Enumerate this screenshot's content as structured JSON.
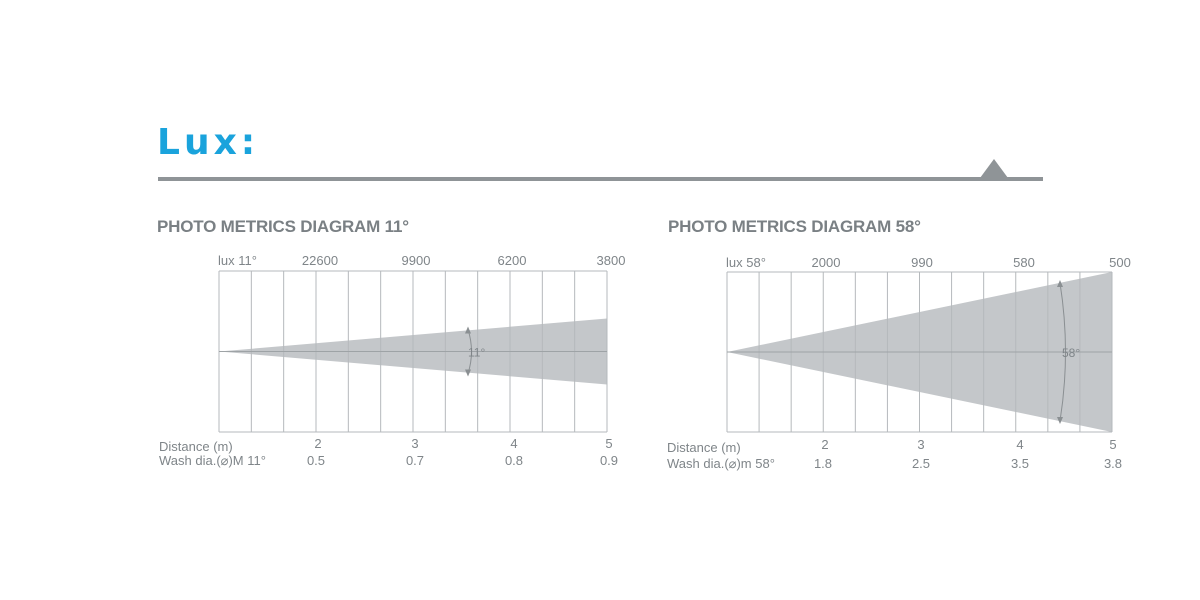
{
  "page": {
    "title": "Lux:"
  },
  "diagrams": [
    {
      "title": "PHOTO METRICS DIAGRAM 11°",
      "lux_label": "lux 11°",
      "lux_values": [
        "22600",
        "9900",
        "6200",
        "3800"
      ],
      "beam_label": "11°",
      "distance_label": "Distance (m)",
      "distances": [
        "2",
        "3",
        "4",
        "5"
      ],
      "wash_label": "Wash dia.(⌀)M 11°",
      "wash_values": [
        "0.5",
        "0.7",
        "0.8",
        "0.9"
      ]
    },
    {
      "title": "PHOTO METRICS DIAGRAM 58°",
      "lux_label": "lux 58°",
      "lux_values": [
        "2000",
        "990",
        "580",
        "500"
      ],
      "beam_label": "58°",
      "distance_label": "Distance (m)",
      "distances": [
        "2",
        "3",
        "4",
        "5"
      ],
      "wash_label": "Wash dia.(⌀)m 58°",
      "wash_values": [
        "1.8",
        "2.5",
        "3.5",
        "3.8"
      ]
    }
  ],
  "colors": {
    "accent": "#1aa3dc",
    "rule": "#8f9497",
    "beam_fill": "#c4c7ca",
    "grid": "#b5b9bc",
    "text": "#7f8589"
  }
}
